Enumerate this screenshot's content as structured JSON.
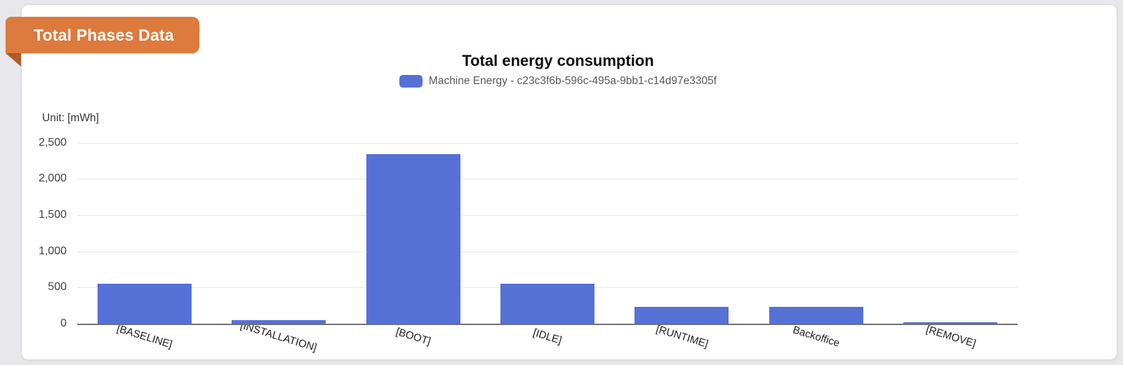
{
  "page": {
    "background": "#e8e8ec"
  },
  "ribbon": {
    "label": "Total Phases Data",
    "color": "#dd7a3d",
    "fold_color": "#b05d27"
  },
  "chart_data": {
    "type": "bar",
    "title": "Total energy consumption",
    "unit_label": "Unit: [mWh]",
    "legend": [
      {
        "label": "Machine Energy - c23c3f6b-596c-495a-9bb1-c14d97e3305f",
        "color": "#5571d5"
      }
    ],
    "legend_position": "top",
    "categories": [
      "[BASELINE]",
      "[INSTALLATION]",
      "[BOOT]",
      "[IDLE]",
      "[RUNTIME]",
      "Backoffice",
      "[REMOVE]"
    ],
    "values": [
      550,
      45,
      2340,
      550,
      230,
      230,
      20
    ],
    "bar_color": "#5571d5",
    "y_ticks": [
      "2,500",
      "2,000",
      "1,500",
      "1,000",
      "500",
      "0"
    ],
    "ylim": [
      0,
      2500
    ],
    "xlabel": "",
    "ylabel": "Unit: [mWh]",
    "grid": true,
    "gridline_color": "#e7e7e7",
    "axis_color": "#6e7276"
  }
}
